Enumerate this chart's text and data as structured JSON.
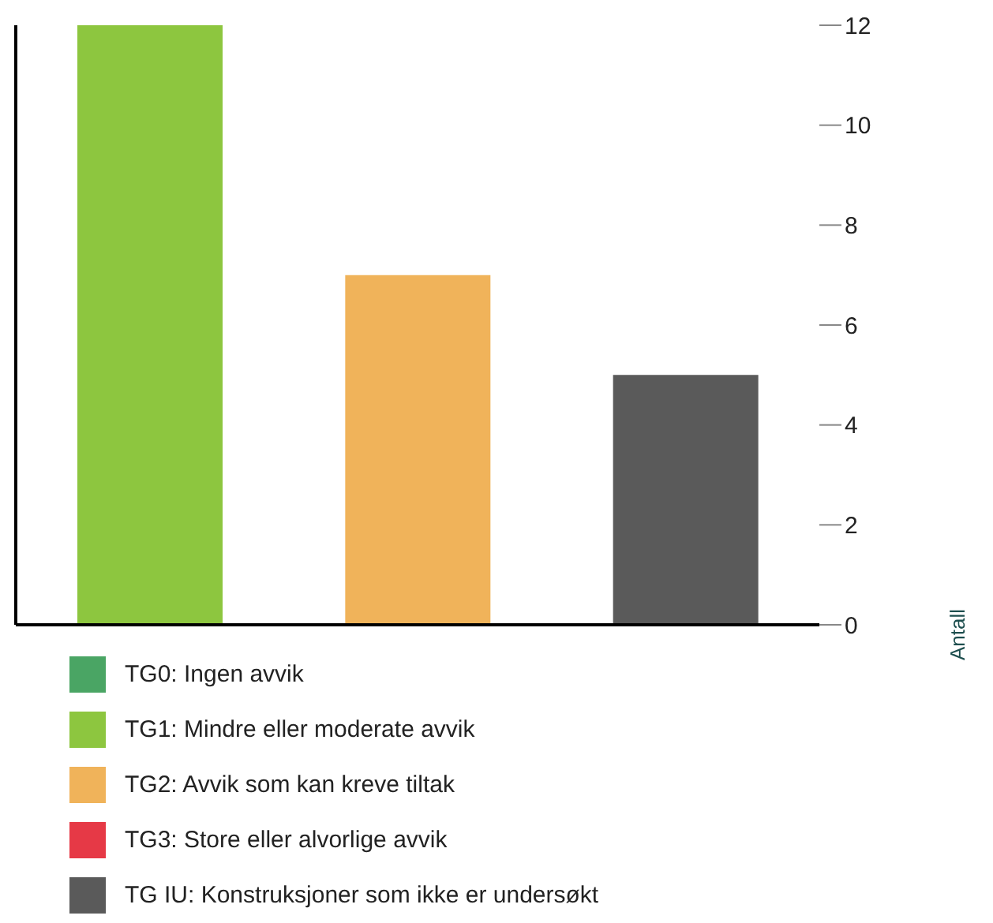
{
  "chart_data": {
    "type": "bar",
    "stacked": true,
    "categories": [
      null,
      null,
      null
    ],
    "ylabel": "Antall",
    "ylim": [
      0,
      12
    ],
    "yticks": [
      0,
      2,
      4,
      6,
      8,
      10,
      12
    ],
    "grid": false,
    "legend": "bottom",
    "series": [
      {
        "name": "TG0: Ingen avvik",
        "color": "#4aa564",
        "values": [
          null,
          null,
          null
        ]
      },
      {
        "name": "TG1: Mindre eller moderate avvik",
        "color": "#8dc63f",
        "values": [
          12,
          null,
          null
        ]
      },
      {
        "name": "TG2: Avvik som kan kreve tiltak",
        "color": "#f0b35a",
        "values": [
          null,
          7,
          null
        ]
      },
      {
        "name": "TG3: Store eller alvorlige avvik",
        "color": "#e63946",
        "values": [
          null,
          null,
          null
        ]
      },
      {
        "name": "TG IU: Konstruksjoner som ikke er undersøkt",
        "color": "#5a5a5a",
        "values": [
          null,
          null,
          5
        ]
      }
    ]
  }
}
